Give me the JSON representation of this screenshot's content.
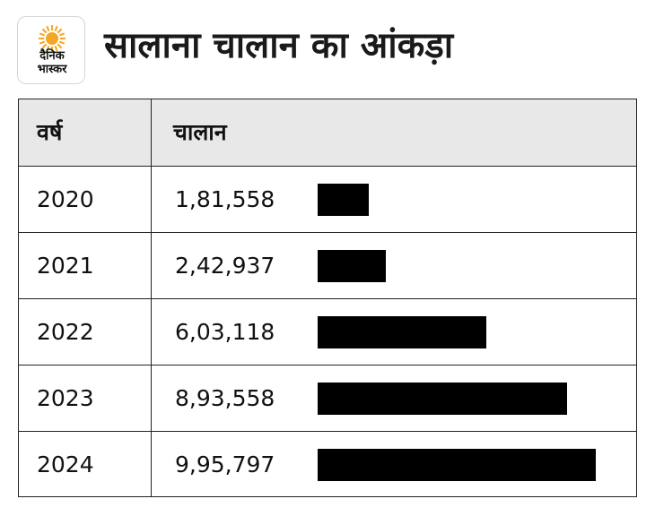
{
  "logo": {
    "line1": "दैनिक",
    "line2": "भास्कर",
    "sun_color": "#f5a623"
  },
  "title": "सालाना चालान का आंकड़ा",
  "chart_data": {
    "type": "table",
    "bar_color": "#000000",
    "header_bg": "#e8e8e8",
    "columns": [
      "वर्ष",
      "चालान"
    ],
    "rows": [
      {
        "year": "2020",
        "value_label": "1,81,558",
        "value": 181558
      },
      {
        "year": "2021",
        "value_label": "2,42,937",
        "value": 242937
      },
      {
        "year": "2022",
        "value_label": "6,03,118",
        "value": 603118
      },
      {
        "year": "2023",
        "value_label": "8,93,558",
        "value": 893558
      },
      {
        "year": "2024",
        "value_label": "9,95,797",
        "value": 995797
      }
    ]
  }
}
